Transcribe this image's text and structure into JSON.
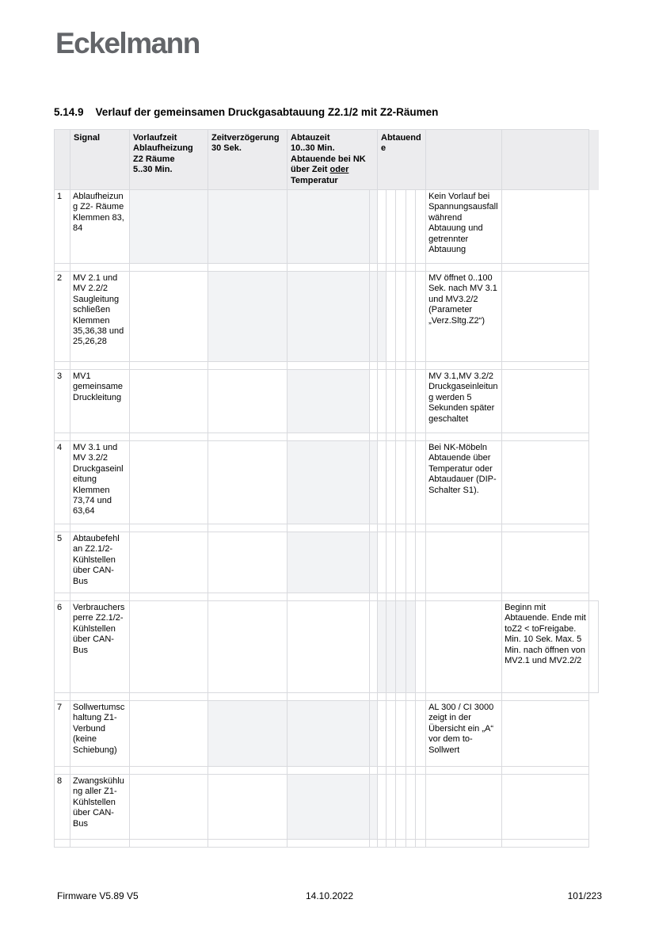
{
  "brand": {
    "logo_text": "Eckelmann"
  },
  "heading": {
    "number": "5.14.9",
    "title": "Verlauf der gemeinsamen Druckgasabtauung Z2.1/2 mit Z2-Räumen"
  },
  "table": {
    "header": {
      "num_label": "",
      "signal_label": "Signal",
      "vorlaufzeit_label": "Vorlaufzeit\nAblaufheizung\nZ2 Räume\n5..30 Min.",
      "zeitverzoegerung_label": "Zeitverzögerung\n30 Sek.",
      "abtauzeit_label_pre": "Abtauzeit\n10..30 Min.\nAbtauende bei NK\nüber Zeit ",
      "abtauzeit_label_underlined": "oder",
      "abtauzeit_label_post": "\nTemperatur",
      "abtauende_label": "Abtauende",
      "notes1_label": "",
      "notes2_label": ""
    },
    "rows": [
      {
        "num": "1",
        "signal": "Ablaufheizung Z2- Räume Klemmen 83, 84",
        "notes1": "Kein Vorlauf bei Spannungsausfall während Abtauung und getrennter Abtauung",
        "notes2": "",
        "bar": [
          2,
          5
        ],
        "extra": false
      },
      {
        "num": "2",
        "signal": "MV 2.1 und MV 2.2/2 Saugleitung schließen Klemmen 35,36,38 und 25,26,28",
        "notes1": "MV öffnet 0..100 Sek. nach MV 3.1 und MV3.2/2 (Parameter „Verz.Sltg.Z2“)",
        "notes2": "",
        "bar": [
          3,
          6
        ],
        "extra": false
      },
      {
        "num": "3",
        "signal": "MV1 gemeinsame Druckleitung",
        "notes1": "MV 3.1,MV 3.2/2 Druckgaseinleitung werden 5 Sekunden später geschaltet",
        "notes2": "",
        "bar": [
          4,
          4
        ],
        "extra": false
      },
      {
        "num": "4",
        "signal": "MV 3.1 und MV 3.2/2 Druckgaseinleitung Klemmen 73,74 und 63,64",
        "notes1": "Bei NK-Möbeln Abtauende über Temperatur oder Abtaudauer (DIP-Schalter S1).",
        "notes2": "",
        "bar": [
          4,
          5
        ],
        "extra": false
      },
      {
        "num": "5",
        "signal": "Abtaubefehl an Z2.1/2-Kühlstellen über CAN-Bus",
        "notes1": "",
        "notes2": "",
        "bar": [
          4,
          5
        ],
        "extra": false
      },
      {
        "num": "6",
        "signal": "Verbrauchersperre Z2.1/2-Kühlstellen über CAN-Bus",
        "notes1": "",
        "notes2": "Beginn mit Abtauende. Ende mit toZ2 < toFreigabe. Min. 10 Sek. Max. 5 Min. nach öffnen von MV2.1 und MV2.2/2",
        "bar": [
          6,
          9
        ],
        "extra": true
      },
      {
        "num": "7",
        "signal": "Sollwertumschaltung Z1-Verbund (keine Schiebung)",
        "notes1": "AL 300 / CI 3000 zeigt in der Übersicht ein „A“ vor dem to-Sollwert",
        "notes2": "",
        "bar": [
          3,
          5
        ],
        "extra": false
      },
      {
        "num": "8",
        "signal": "Zwangskühlung aller Z1-Kühlstellen über CAN-Bus",
        "notes1": "",
        "notes2": "",
        "bar": [
          4,
          5
        ],
        "extra": false
      }
    ]
  },
  "footer": {
    "left": "Firmware V5.89 V5",
    "center": "14.10.2022",
    "right": "101/223"
  },
  "colors": {
    "header_bg": "#ececee",
    "bar_fill": "#f2f3f5",
    "grid_line": "#d9dade",
    "logo_gray": "#636569"
  }
}
